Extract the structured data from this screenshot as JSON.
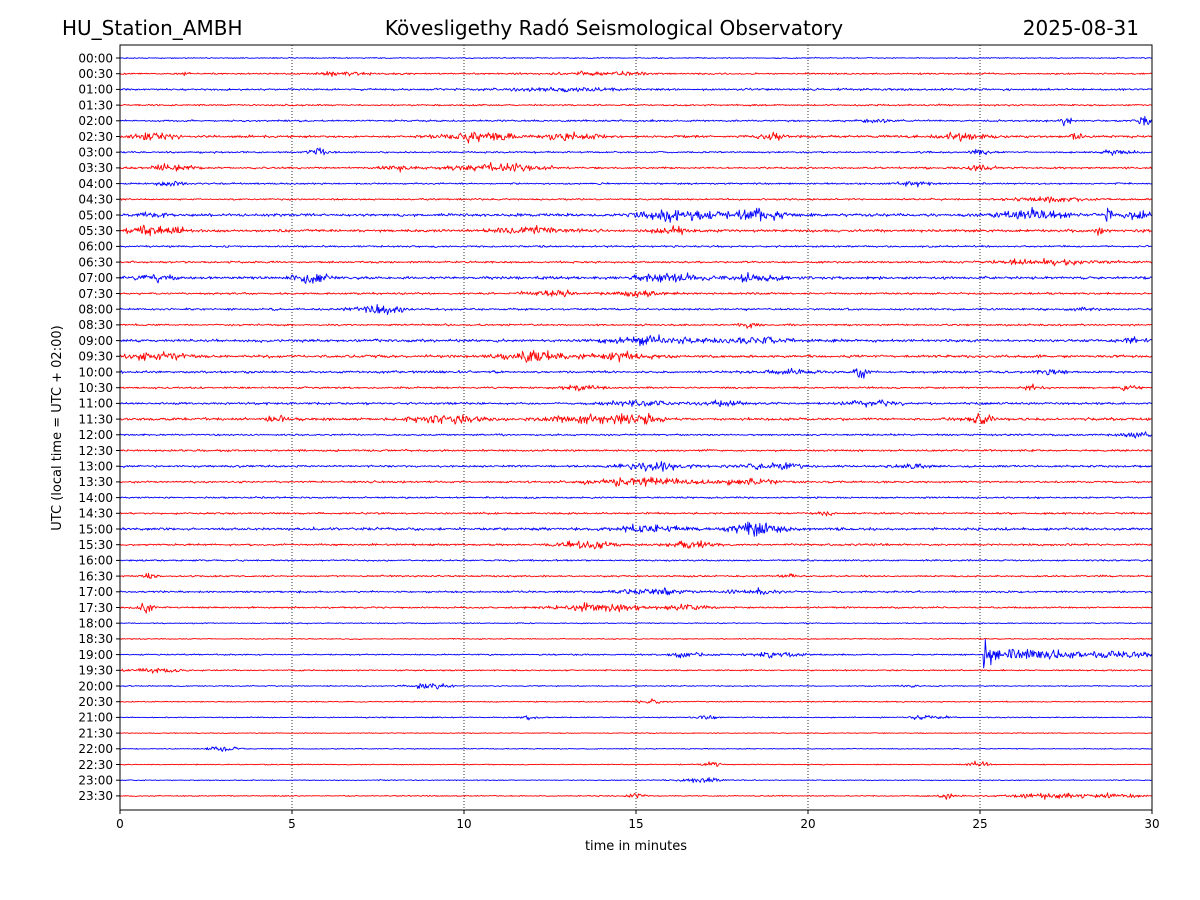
{
  "header": {
    "station": "HU_Station_AMBH",
    "observatory": "Kövesligethy Radó Seismological Observatory",
    "date": "2025-08-31"
  },
  "colors": {
    "even_trace": "#0000ff",
    "odd_trace": "#ff0000",
    "axes": "#000000",
    "grid": "#000000",
    "background": "#ffffff"
  },
  "chart_data": {
    "type": "line",
    "title": "",
    "xlabel": "time in minutes",
    "ylabel": "UTC (local time = UTC + 02:00)",
    "xlim": [
      0,
      30
    ],
    "x_ticks": [
      0,
      5,
      10,
      15,
      20,
      25,
      30
    ],
    "x_grid": "dotted vertical lines at each x tick",
    "row_labels": [
      "00:00",
      "00:30",
      "01:00",
      "01:30",
      "02:00",
      "02:30",
      "03:00",
      "03:30",
      "04:00",
      "04:30",
      "05:00",
      "05:30",
      "06:00",
      "06:30",
      "07:00",
      "07:30",
      "08:00",
      "08:30",
      "09:00",
      "09:30",
      "10:00",
      "10:30",
      "11:00",
      "11:30",
      "12:00",
      "12:30",
      "13:00",
      "13:30",
      "14:00",
      "14:30",
      "15:00",
      "15:30",
      "16:00",
      "16:30",
      "17:00",
      "17:30",
      "18:00",
      "18:30",
      "19:00",
      "19:30",
      "20:00",
      "20:30",
      "21:00",
      "21:30",
      "22:00",
      "22:30",
      "23:00",
      "23:30"
    ],
    "trace_color_pattern": "alternating blue / red per row, starting blue",
    "base_amplitude": [
      0.12,
      0.18,
      0.22,
      0.18,
      0.2,
      0.25,
      0.18,
      0.2,
      0.18,
      0.18,
      0.3,
      0.3,
      0.2,
      0.22,
      0.3,
      0.22,
      0.22,
      0.2,
      0.3,
      0.3,
      0.25,
      0.2,
      0.25,
      0.3,
      0.2,
      0.22,
      0.22,
      0.22,
      0.18,
      0.2,
      0.3,
      0.22,
      0.18,
      0.18,
      0.2,
      0.18,
      0.12,
      0.12,
      0.15,
      0.15,
      0.12,
      0.12,
      0.12,
      0.1,
      0.1,
      0.1,
      0.1,
      0.12
    ],
    "bursts": [
      {
        "row": 1,
        "t": 1.8,
        "width": 0.3,
        "amp": 0.5
      },
      {
        "row": 1,
        "t": 6.5,
        "width": 1.5,
        "amp": 0.45
      },
      {
        "row": 1,
        "t": 14.0,
        "width": 2.5,
        "amp": 0.4
      },
      {
        "row": 2,
        "t": 13.0,
        "width": 3.0,
        "amp": 0.35
      },
      {
        "row": 4,
        "t": 22.0,
        "width": 1.0,
        "amp": 0.4
      },
      {
        "row": 4,
        "t": 27.5,
        "width": 0.3,
        "amp": 0.8
      },
      {
        "row": 4,
        "t": 29.8,
        "width": 0.4,
        "amp": 1.0
      },
      {
        "row": 5,
        "t": 1.0,
        "width": 1.2,
        "amp": 0.8
      },
      {
        "row": 5,
        "t": 10.5,
        "width": 2.0,
        "amp": 1.1
      },
      {
        "row": 5,
        "t": 13.2,
        "width": 1.5,
        "amp": 0.8
      },
      {
        "row": 5,
        "t": 19.0,
        "width": 1.0,
        "amp": 0.5
      },
      {
        "row": 5,
        "t": 24.5,
        "width": 1.5,
        "amp": 0.7
      },
      {
        "row": 5,
        "t": 27.8,
        "width": 0.4,
        "amp": 0.8
      },
      {
        "row": 6,
        "t": 5.8,
        "width": 0.6,
        "amp": 0.8
      },
      {
        "row": 6,
        "t": 25.0,
        "width": 0.5,
        "amp": 0.6
      },
      {
        "row": 6,
        "t": 29.0,
        "width": 1.0,
        "amp": 0.5
      },
      {
        "row": 7,
        "t": 1.5,
        "width": 1.2,
        "amp": 0.7
      },
      {
        "row": 7,
        "t": 8.0,
        "width": 0.8,
        "amp": 0.7
      },
      {
        "row": 7,
        "t": 11.0,
        "width": 2.5,
        "amp": 0.8
      },
      {
        "row": 7,
        "t": 25.0,
        "width": 0.8,
        "amp": 0.6
      },
      {
        "row": 8,
        "t": 1.5,
        "width": 0.8,
        "amp": 0.5
      },
      {
        "row": 8,
        "t": 23.0,
        "width": 1.0,
        "amp": 0.5
      },
      {
        "row": 9,
        "t": 27.0,
        "width": 2.5,
        "amp": 0.45
      },
      {
        "row": 10,
        "t": 1.0,
        "width": 0.8,
        "amp": 0.6
      },
      {
        "row": 10,
        "t": 16.2,
        "width": 2.0,
        "amp": 1.1
      },
      {
        "row": 10,
        "t": 18.5,
        "width": 2.0,
        "amp": 1.0
      },
      {
        "row": 10,
        "t": 26.5,
        "width": 2.0,
        "amp": 1.0
      },
      {
        "row": 10,
        "t": 28.7,
        "width": 0.2,
        "amp": 2.0
      },
      {
        "row": 10,
        "t": 29.5,
        "width": 0.8,
        "amp": 1.0
      },
      {
        "row": 11,
        "t": 1.0,
        "width": 1.5,
        "amp": 1.0
      },
      {
        "row": 11,
        "t": 12.0,
        "width": 2.0,
        "amp": 0.8
      },
      {
        "row": 11,
        "t": 16.0,
        "width": 1.5,
        "amp": 0.6
      },
      {
        "row": 11,
        "t": 28.5,
        "width": 0.2,
        "amp": 1.2
      },
      {
        "row": 13,
        "t": 27.0,
        "width": 3.0,
        "amp": 0.5
      },
      {
        "row": 14,
        "t": 1.0,
        "width": 1.2,
        "amp": 0.7
      },
      {
        "row": 14,
        "t": 5.6,
        "width": 1.0,
        "amp": 1.2
      },
      {
        "row": 14,
        "t": 16.0,
        "width": 2.0,
        "amp": 0.9
      },
      {
        "row": 14,
        "t": 18.5,
        "width": 1.5,
        "amp": 0.8
      },
      {
        "row": 15,
        "t": 12.5,
        "width": 1.5,
        "amp": 0.6
      },
      {
        "row": 15,
        "t": 15.0,
        "width": 1.5,
        "amp": 0.5
      },
      {
        "row": 16,
        "t": 7.5,
        "width": 1.5,
        "amp": 1.1
      },
      {
        "row": 16,
        "t": 28.0,
        "width": 0.5,
        "amp": 0.6
      },
      {
        "row": 17,
        "t": 18.3,
        "width": 0.5,
        "amp": 0.7
      },
      {
        "row": 18,
        "t": 15.5,
        "width": 2.5,
        "amp": 0.8
      },
      {
        "row": 18,
        "t": 18.5,
        "width": 2.0,
        "amp": 0.7
      },
      {
        "row": 18,
        "t": 29.5,
        "width": 1.0,
        "amp": 0.5
      },
      {
        "row": 19,
        "t": 1.0,
        "width": 1.5,
        "amp": 0.9
      },
      {
        "row": 19,
        "t": 12.0,
        "width": 2.0,
        "amp": 1.0
      },
      {
        "row": 19,
        "t": 14.5,
        "width": 1.5,
        "amp": 0.8
      },
      {
        "row": 20,
        "t": 19.5,
        "width": 1.5,
        "amp": 0.5
      },
      {
        "row": 20,
        "t": 21.6,
        "width": 0.4,
        "amp": 1.5
      },
      {
        "row": 20,
        "t": 27.0,
        "width": 1.0,
        "amp": 0.5
      },
      {
        "row": 21,
        "t": 13.5,
        "width": 1.0,
        "amp": 0.6
      },
      {
        "row": 21,
        "t": 26.5,
        "width": 0.5,
        "amp": 0.6
      },
      {
        "row": 21,
        "t": 29.3,
        "width": 0.5,
        "amp": 0.6
      },
      {
        "row": 22,
        "t": 15.0,
        "width": 2.0,
        "amp": 0.6
      },
      {
        "row": 22,
        "t": 17.5,
        "width": 1.0,
        "amp": 0.6
      },
      {
        "row": 22,
        "t": 22.0,
        "width": 1.5,
        "amp": 0.6
      },
      {
        "row": 23,
        "t": 4.5,
        "width": 0.5,
        "amp": 0.8
      },
      {
        "row": 23,
        "t": 9.5,
        "width": 2.0,
        "amp": 0.9
      },
      {
        "row": 23,
        "t": 13.5,
        "width": 2.0,
        "amp": 1.0
      },
      {
        "row": 23,
        "t": 15.0,
        "width": 1.5,
        "amp": 0.9
      },
      {
        "row": 23,
        "t": 25.0,
        "width": 0.8,
        "amp": 0.8
      },
      {
        "row": 24,
        "t": 29.5,
        "width": 1.0,
        "amp": 0.5
      },
      {
        "row": 26,
        "t": 15.5,
        "width": 2.0,
        "amp": 0.9
      },
      {
        "row": 26,
        "t": 19.0,
        "width": 2.0,
        "amp": 0.7
      },
      {
        "row": 26,
        "t": 23.0,
        "width": 1.0,
        "amp": 0.6
      },
      {
        "row": 27,
        "t": 15.0,
        "width": 2.5,
        "amp": 0.9
      },
      {
        "row": 27,
        "t": 18.0,
        "width": 2.0,
        "amp": 0.6
      },
      {
        "row": 29,
        "t": 20.5,
        "width": 0.5,
        "amp": 0.5
      },
      {
        "row": 30,
        "t": 15.5,
        "width": 2.0,
        "amp": 0.9
      },
      {
        "row": 30,
        "t": 18.5,
        "width": 1.5,
        "amp": 1.5
      },
      {
        "row": 31,
        "t": 13.5,
        "width": 1.5,
        "amp": 0.9
      },
      {
        "row": 31,
        "t": 16.5,
        "width": 1.5,
        "amp": 0.7
      },
      {
        "row": 33,
        "t": 0.9,
        "width": 0.4,
        "amp": 0.7
      },
      {
        "row": 33,
        "t": 19.5,
        "width": 0.5,
        "amp": 0.5
      },
      {
        "row": 34,
        "t": 15.5,
        "width": 2.0,
        "amp": 0.7
      },
      {
        "row": 34,
        "t": 18.5,
        "width": 1.5,
        "amp": 0.6
      },
      {
        "row": 35,
        "t": 0.7,
        "width": 0.5,
        "amp": 1.0
      },
      {
        "row": 35,
        "t": 14.0,
        "width": 2.5,
        "amp": 0.8
      },
      {
        "row": 35,
        "t": 16.5,
        "width": 1.0,
        "amp": 0.6
      },
      {
        "row": 38,
        "t": 16.5,
        "width": 1.0,
        "amp": 0.8
      },
      {
        "row": 38,
        "t": 19.0,
        "width": 1.5,
        "amp": 0.6
      },
      {
        "row": 39,
        "t": 1.0,
        "width": 1.5,
        "amp": 0.5
      },
      {
        "row": 40,
        "t": 9.0,
        "width": 1.2,
        "amp": 0.5
      },
      {
        "row": 40,
        "t": 23.0,
        "width": 0.5,
        "amp": 0.3
      },
      {
        "row": 41,
        "t": 15.5,
        "width": 1.0,
        "amp": 0.4
      },
      {
        "row": 42,
        "t": 12.0,
        "width": 0.5,
        "amp": 0.5
      },
      {
        "row": 42,
        "t": 17.0,
        "width": 0.6,
        "amp": 0.6
      },
      {
        "row": 42,
        "t": 23.5,
        "width": 1.0,
        "amp": 0.5
      },
      {
        "row": 44,
        "t": 3.0,
        "width": 0.8,
        "amp": 0.7
      },
      {
        "row": 45,
        "t": 17.2,
        "width": 0.5,
        "amp": 0.8
      },
      {
        "row": 45,
        "t": 25.0,
        "width": 0.6,
        "amp": 0.7
      },
      {
        "row": 46,
        "t": 17.0,
        "width": 1.5,
        "amp": 0.4
      },
      {
        "row": 47,
        "t": 15.0,
        "width": 0.5,
        "amp": 0.6
      },
      {
        "row": 47,
        "t": 24.0,
        "width": 0.6,
        "amp": 0.5
      },
      {
        "row": 47,
        "t": 27.0,
        "width": 2.0,
        "amp": 0.6
      },
      {
        "row": 47,
        "t": 29.0,
        "width": 1.5,
        "amp": 0.5
      }
    ],
    "earthquake": {
      "row": 38,
      "onset_minute": 25.1,
      "peak_amp": 4.2,
      "coda_amp": 1.4,
      "decay_minutes": 4.5
    }
  }
}
